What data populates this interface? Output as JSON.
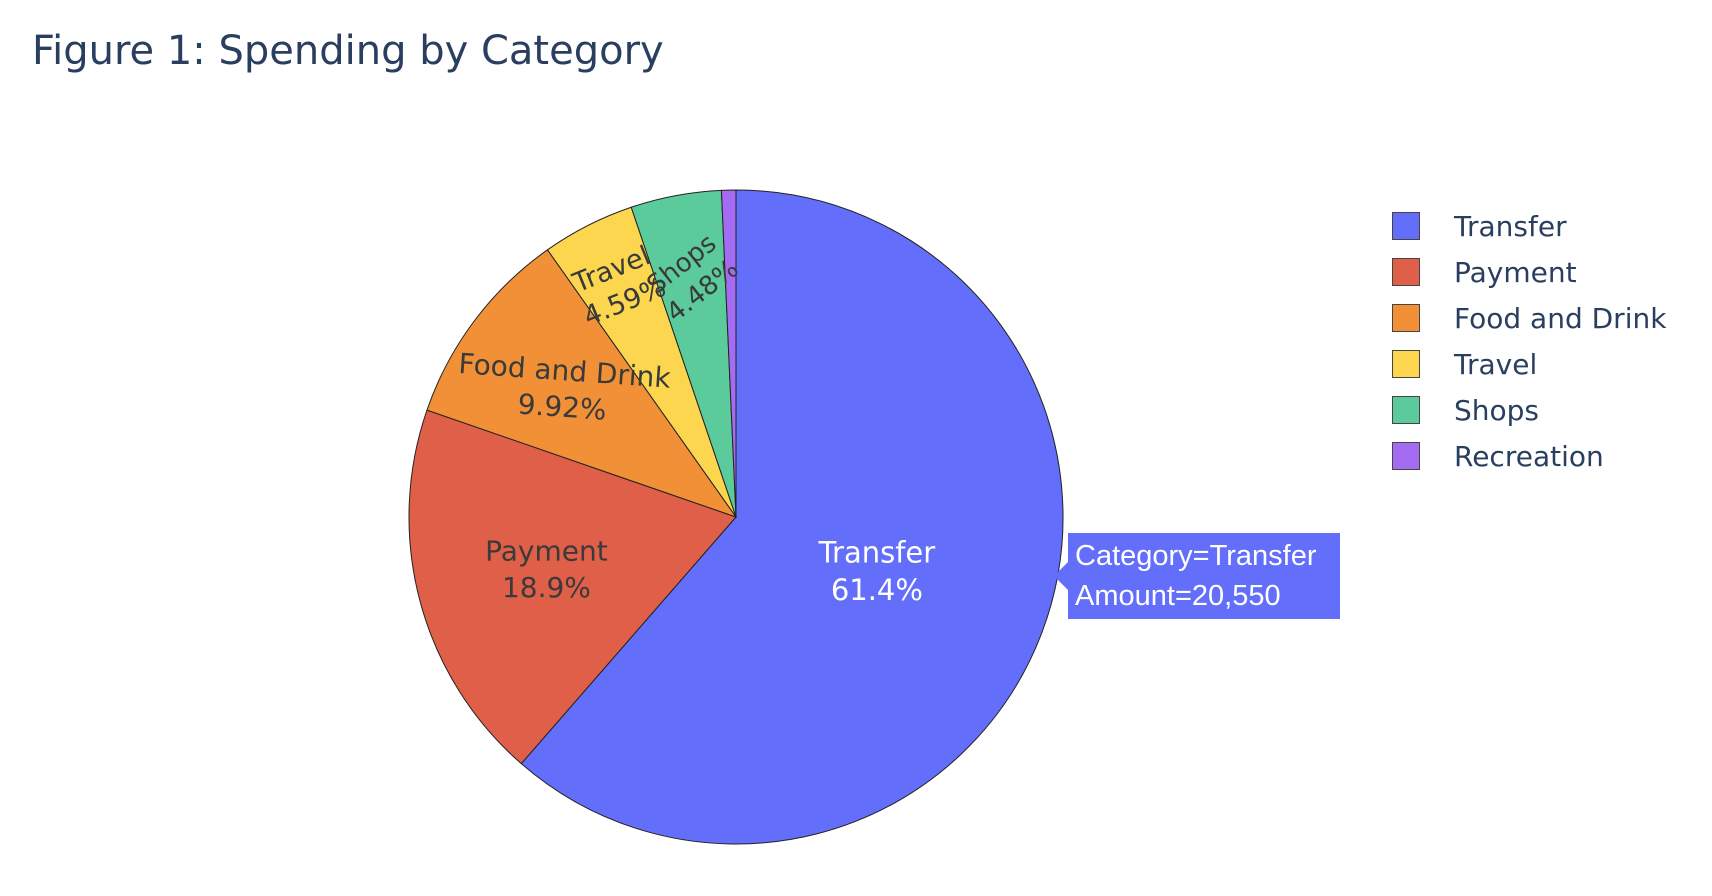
{
  "chart_data": {
    "type": "pie",
    "title": "Figure 1: Spending by Category",
    "slices": [
      {
        "label": "Transfer",
        "percent_label": "61.4%",
        "value": 61.4,
        "color": "#636efa",
        "text_color": "#ffffff"
      },
      {
        "label": "Payment",
        "percent_label": "18.9%",
        "value": 18.9,
        "color": "#e05f48",
        "text_color": "#3a3a3a"
      },
      {
        "label": "Food and Drink",
        "percent_label": "9.92%",
        "value": 9.92,
        "color": "#f19036",
        "text_color": "#3a3a3a"
      },
      {
        "label": "Travel",
        "percent_label": "4.59%",
        "value": 4.59,
        "color": "#fbd64e",
        "text_color": "#3a3a3a"
      },
      {
        "label": "Shops",
        "percent_label": "4.48%",
        "value": 4.48,
        "color": "#5bcb9b",
        "text_color": "#3a3a3a"
      },
      {
        "label": "Recreation",
        "percent_label": "",
        "value": 0.71,
        "color": "#a46cf2",
        "text_color": "#3a3a3a"
      }
    ],
    "legend_placement": "right",
    "direction": "clockwise",
    "hover": {
      "line1": "Category=Transfer",
      "line2": "Amount=20,550",
      "color": "#636efa"
    }
  }
}
